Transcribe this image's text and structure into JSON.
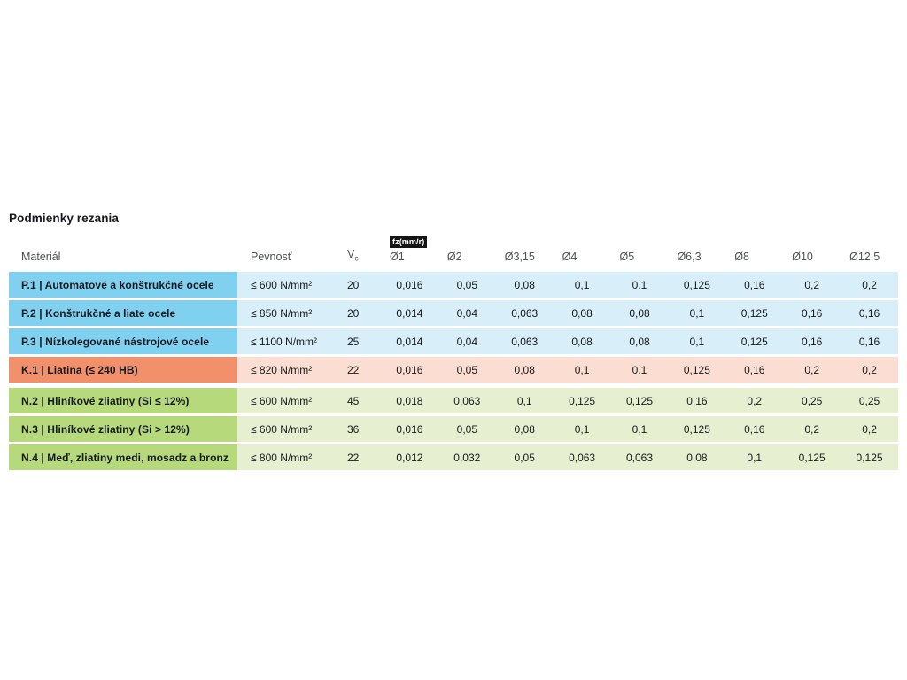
{
  "title": "Podmienky rezania",
  "table": {
    "headers": {
      "material": "Materiál",
      "strength": "Pevnosť",
      "vc_main": "V",
      "vc_sub": "c",
      "fz_badge": "fz(mm/r)",
      "diameters": [
        "Ø1",
        "Ø2",
        "Ø3,15",
        "Ø4",
        "Ø5",
        "Ø6,3",
        "Ø8",
        "Ø10",
        "Ø12,5"
      ]
    },
    "rows": [
      {
        "group": "P",
        "label": "P.1 | Automatové a konštrukčné ocele",
        "strength": "≤ 600 N/mm²",
        "vc": "20",
        "values": [
          "0,016",
          "0,05",
          "0,08",
          "0,1",
          "0,1",
          "0,125",
          "0,16",
          "0,2",
          "0,2"
        ]
      },
      {
        "group": "P",
        "label": "P.2 | Konštrukčné a liate ocele",
        "strength": "≤ 850 N/mm²",
        "vc": "20",
        "values": [
          "0,014",
          "0,04",
          "0,063",
          "0,08",
          "0,08",
          "0,1",
          "0,125",
          "0,16",
          "0,16"
        ]
      },
      {
        "group": "P",
        "label": "P.3 | Nízkolegované nástrojové ocele",
        "strength": "≤ 1100 N/mm²",
        "vc": "25",
        "values": [
          "0,014",
          "0,04",
          "0,063",
          "0,08",
          "0,08",
          "0,1",
          "0,125",
          "0,16",
          "0,16"
        ]
      },
      {
        "group": "K",
        "label": "K.1 | Liatina (≤ 240 HB)",
        "strength": "≤ 820 N/mm²",
        "vc": "22",
        "values": [
          "0,016",
          "0,05",
          "0,08",
          "0,1",
          "0,1",
          "0,125",
          "0,16",
          "0,2",
          "0,2"
        ]
      },
      {
        "group": "N",
        "gap_before": true,
        "label": "N.2 | Hliníkové zliatiny (Si ≤ 12%)",
        "strength": "≤ 600 N/mm²",
        "vc": "45",
        "values": [
          "0,018",
          "0,063",
          "0,1",
          "0,125",
          "0,125",
          "0,16",
          "0,2",
          "0,25",
          "0,25"
        ]
      },
      {
        "group": "N",
        "label": "N.3 | Hliníkové zliatiny (Si > 12%)",
        "strength": "≤ 600 N/mm²",
        "vc": "36",
        "values": [
          "0,016",
          "0,05",
          "0,08",
          "0,1",
          "0,1",
          "0,125",
          "0,16",
          "0,2",
          "0,2"
        ]
      },
      {
        "group": "N",
        "label": "N.4 | Meď, zliatiny medi, mosadz a bronz",
        "strength": "≤ 800 N/mm²",
        "vc": "22",
        "values": [
          "0,012",
          "0,032",
          "0,05",
          "0,063",
          "0,063",
          "0,08",
          "0,1",
          "0,125",
          "0,125"
        ]
      }
    ]
  },
  "colors": {
    "blue_dark": "#80d1ef",
    "blue_light": "#d8eef9",
    "orange_dark": "#f1906b",
    "orange_light": "#fbddd1",
    "green_dark": "#b5d97b",
    "green_light": "#e6f0d0",
    "badge_bg": "#141414"
  }
}
